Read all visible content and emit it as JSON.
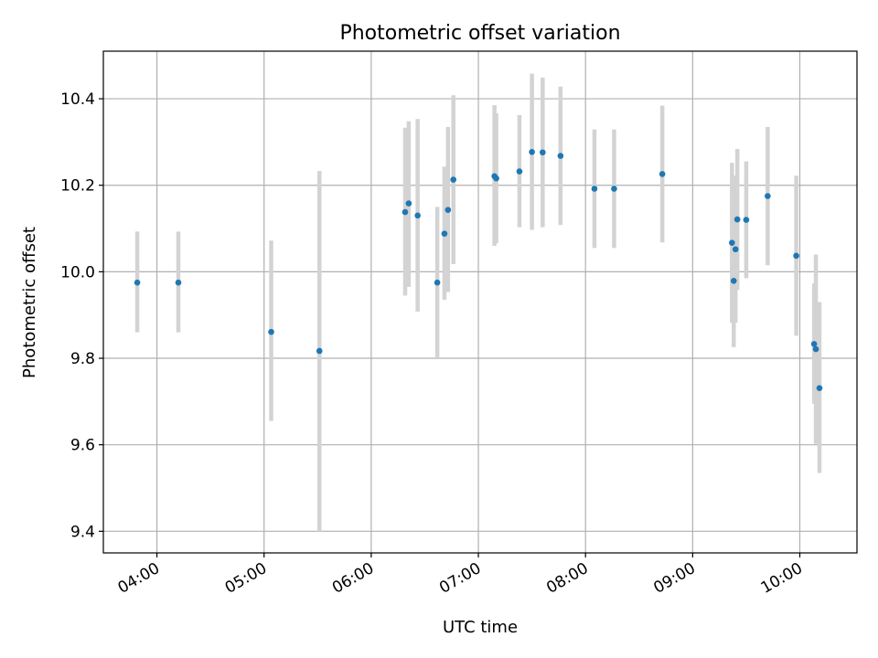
{
  "chart_data": {
    "type": "scatter",
    "title": "Photometric offset variation",
    "xlabel": "UTC time",
    "ylabel": "Photometric offset",
    "x_unit": "UTC time (HH:MM)",
    "xlim": [
      "03:30",
      "10:32"
    ],
    "ylim": [
      9.35,
      10.51
    ],
    "x_ticks": [
      "04:00",
      "05:00",
      "06:00",
      "07:00",
      "08:00",
      "09:00",
      "10:00"
    ],
    "y_ticks": [
      9.4,
      9.6,
      9.8,
      10.0,
      10.2,
      10.4
    ],
    "y_tick_labels": [
      "9.4",
      "9.6",
      "9.8",
      "10.0",
      "10.2",
      "10.4"
    ],
    "grid": true,
    "marker_color": "#1f77b4",
    "errorbar_color": "#d3d3d3",
    "points": [
      {
        "x": "03:49",
        "y": 9.975,
        "lo": 9.86,
        "hi": 10.093
      },
      {
        "x": "04:12",
        "y": 9.975,
        "lo": 9.86,
        "hi": 10.093
      },
      {
        "x": "05:04",
        "y": 9.861,
        "lo": 9.655,
        "hi": 10.072
      },
      {
        "x": "05:31",
        "y": 9.817,
        "lo": 9.4,
        "hi": 10.233
      },
      {
        "x": "06:19",
        "y": 10.138,
        "lo": 9.945,
        "hi": 10.333
      },
      {
        "x": "06:21",
        "y": 10.158,
        "lo": 9.965,
        "hi": 10.348
      },
      {
        "x": "06:26",
        "y": 10.13,
        "lo": 9.908,
        "hi": 10.353
      },
      {
        "x": "06:37",
        "y": 9.975,
        "lo": 9.8,
        "hi": 10.15
      },
      {
        "x": "06:41",
        "y": 10.088,
        "lo": 9.935,
        "hi": 10.243
      },
      {
        "x": "06:43",
        "y": 10.143,
        "lo": 9.953,
        "hi": 10.335
      },
      {
        "x": "06:46",
        "y": 10.213,
        "lo": 10.018,
        "hi": 10.408
      },
      {
        "x": "07:09",
        "y": 10.221,
        "lo": 10.06,
        "hi": 10.385
      },
      {
        "x": "07:10",
        "y": 10.216,
        "lo": 10.066,
        "hi": 10.366
      },
      {
        "x": "07:23",
        "y": 10.232,
        "lo": 10.103,
        "hi": 10.362
      },
      {
        "x": "07:30",
        "y": 10.277,
        "lo": 10.097,
        "hi": 10.458
      },
      {
        "x": "07:36",
        "y": 10.276,
        "lo": 10.103,
        "hi": 10.449
      },
      {
        "x": "07:46",
        "y": 10.268,
        "lo": 10.108,
        "hi": 10.428
      },
      {
        "x": "08:05",
        "y": 10.192,
        "lo": 10.055,
        "hi": 10.329
      },
      {
        "x": "08:16",
        "y": 10.192,
        "lo": 10.055,
        "hi": 10.329
      },
      {
        "x": "08:43",
        "y": 10.226,
        "lo": 10.068,
        "hi": 10.384
      },
      {
        "x": "09:22",
        "y": 10.067,
        "lo": 9.882,
        "hi": 10.252
      },
      {
        "x": "09:23",
        "y": 9.979,
        "lo": 9.826,
        "hi": 10.132
      },
      {
        "x": "09:24",
        "y": 10.052,
        "lo": 9.882,
        "hi": 10.222
      },
      {
        "x": "09:25",
        "y": 10.121,
        "lo": 9.958,
        "hi": 10.284
      },
      {
        "x": "09:30",
        "y": 10.12,
        "lo": 9.985,
        "hi": 10.255
      },
      {
        "x": "09:42",
        "y": 10.175,
        "lo": 10.015,
        "hi": 10.335
      },
      {
        "x": "09:58",
        "y": 10.037,
        "lo": 9.852,
        "hi": 10.222
      },
      {
        "x": "10:08",
        "y": 9.833,
        "lo": 9.695,
        "hi": 9.973
      },
      {
        "x": "10:09",
        "y": 9.821,
        "lo": 9.602,
        "hi": 10.04
      },
      {
        "x": "10:11",
        "y": 9.731,
        "lo": 9.535,
        "hi": 9.93
      }
    ]
  }
}
